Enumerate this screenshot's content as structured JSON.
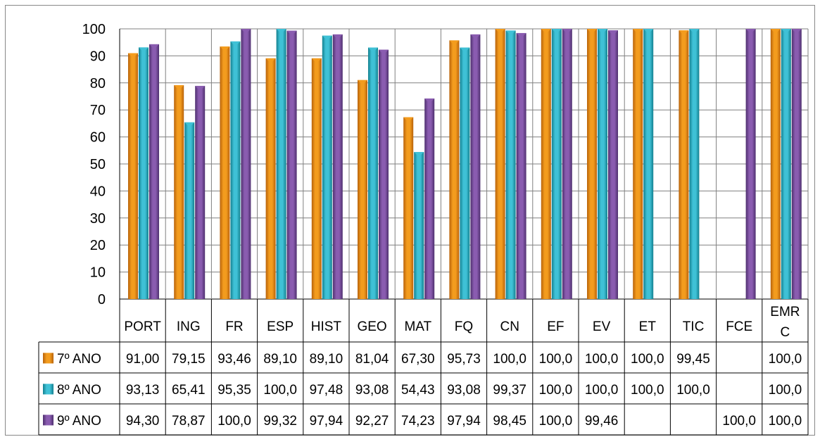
{
  "chart_data": {
    "type": "bar",
    "title": "",
    "xlabel": "",
    "ylabel": "",
    "ylim": [
      0,
      100
    ],
    "yticks": [
      0,
      10,
      20,
      30,
      40,
      50,
      60,
      70,
      80,
      90,
      100
    ],
    "grid": "horizontal",
    "legend": "data-table-rows",
    "categories": [
      "PORT",
      "ING",
      "FR",
      "ESP",
      "HIST",
      "GEO",
      "MAT",
      "FQ",
      "CN",
      "EF",
      "EV",
      "ET",
      "TIC",
      "FCE",
      "EMRC"
    ],
    "category_labels": [
      [
        "PORT"
      ],
      [
        "ING"
      ],
      [
        "FR"
      ],
      [
        "ESP"
      ],
      [
        "HIST"
      ],
      [
        "GEO"
      ],
      [
        "MAT"
      ],
      [
        "FQ"
      ],
      [
        "CN"
      ],
      [
        "EF"
      ],
      [
        "EV"
      ],
      [
        "ET"
      ],
      [
        "TIC"
      ],
      [
        "FCE"
      ],
      [
        "EMR",
        "C"
      ]
    ],
    "series": [
      {
        "name": "7º ANO",
        "color": "#F39C1E",
        "color_dark": "#B8620A",
        "values": [
          91.0,
          79.15,
          93.46,
          89.1,
          89.1,
          81.04,
          67.3,
          95.73,
          100,
          100,
          100,
          100,
          99.45,
          null,
          100
        ],
        "labels": [
          "91,00",
          "79,15",
          "93,46",
          "89,10",
          "89,10",
          "81,04",
          "67,30",
          "95,73",
          "100,0",
          "100,0",
          "100,0",
          "100,0",
          "99,45",
          "",
          "100,0"
        ]
      },
      {
        "name": "8º ANO",
        "color": "#3FC1D6",
        "color_dark": "#13808F",
        "values": [
          93.13,
          65.41,
          95.35,
          100,
          97.48,
          93.08,
          54.43,
          93.08,
          99.37,
          100,
          100,
          100,
          100,
          null,
          100
        ],
        "labels": [
          "93,13",
          "65,41",
          "95,35",
          "100,0",
          "97,48",
          "93,08",
          "54,43",
          "93,08",
          "99,37",
          "100,0",
          "100,0",
          "100,0",
          "100,0",
          "",
          "100,0"
        ]
      },
      {
        "name": "9º ANO",
        "color": "#8A5CB0",
        "color_dark": "#4E2F6E",
        "values": [
          94.3,
          78.87,
          100,
          99.32,
          97.94,
          92.27,
          74.23,
          97.94,
          98.45,
          100,
          99.46,
          null,
          null,
          100,
          100
        ],
        "labels": [
          "94,30",
          "78,87",
          "100,0",
          "99,32",
          "97,94",
          "92,27",
          "74,23",
          "97,94",
          "98,45",
          "100,0",
          "99,46",
          "",
          "",
          "100,0",
          "100,0"
        ]
      }
    ]
  }
}
